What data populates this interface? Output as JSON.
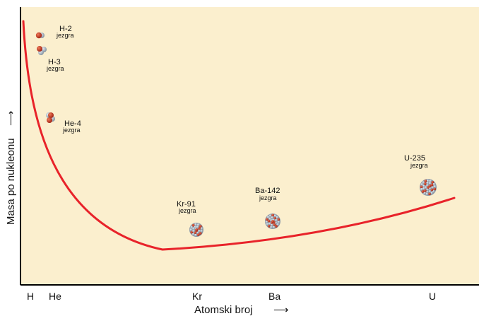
{
  "colors": {
    "plot_background": "#fbefce",
    "curve": "#e8232a",
    "proton": "#c8331e",
    "neutron": "#a9b7c4",
    "axis": "#000000"
  },
  "axes": {
    "x_title": "Atomski broj",
    "y_title": "Masa po nukleonu",
    "arrow_glyph": "⟶"
  },
  "x_ticks": [
    "H",
    "He",
    "Kr",
    "Ba",
    "U"
  ],
  "nuclei": [
    {
      "name": "H-2",
      "sub": "jezgra",
      "icon": "deuterium-nucleus-icon"
    },
    {
      "name": "H-3",
      "sub": "jezgra",
      "icon": "tritium-nucleus-icon"
    },
    {
      "name": "He-4",
      "sub": "jezgra",
      "icon": "helium-nucleus-icon"
    },
    {
      "name": "Kr-91",
      "sub": "jezgra",
      "icon": "krypton-nucleus-icon"
    },
    {
      "name": "Ba-142",
      "sub": "jezgra",
      "icon": "barium-nucleus-icon"
    },
    {
      "name": "U-235",
      "sub": "jezgra",
      "icon": "uranium-nucleus-icon"
    }
  ]
}
